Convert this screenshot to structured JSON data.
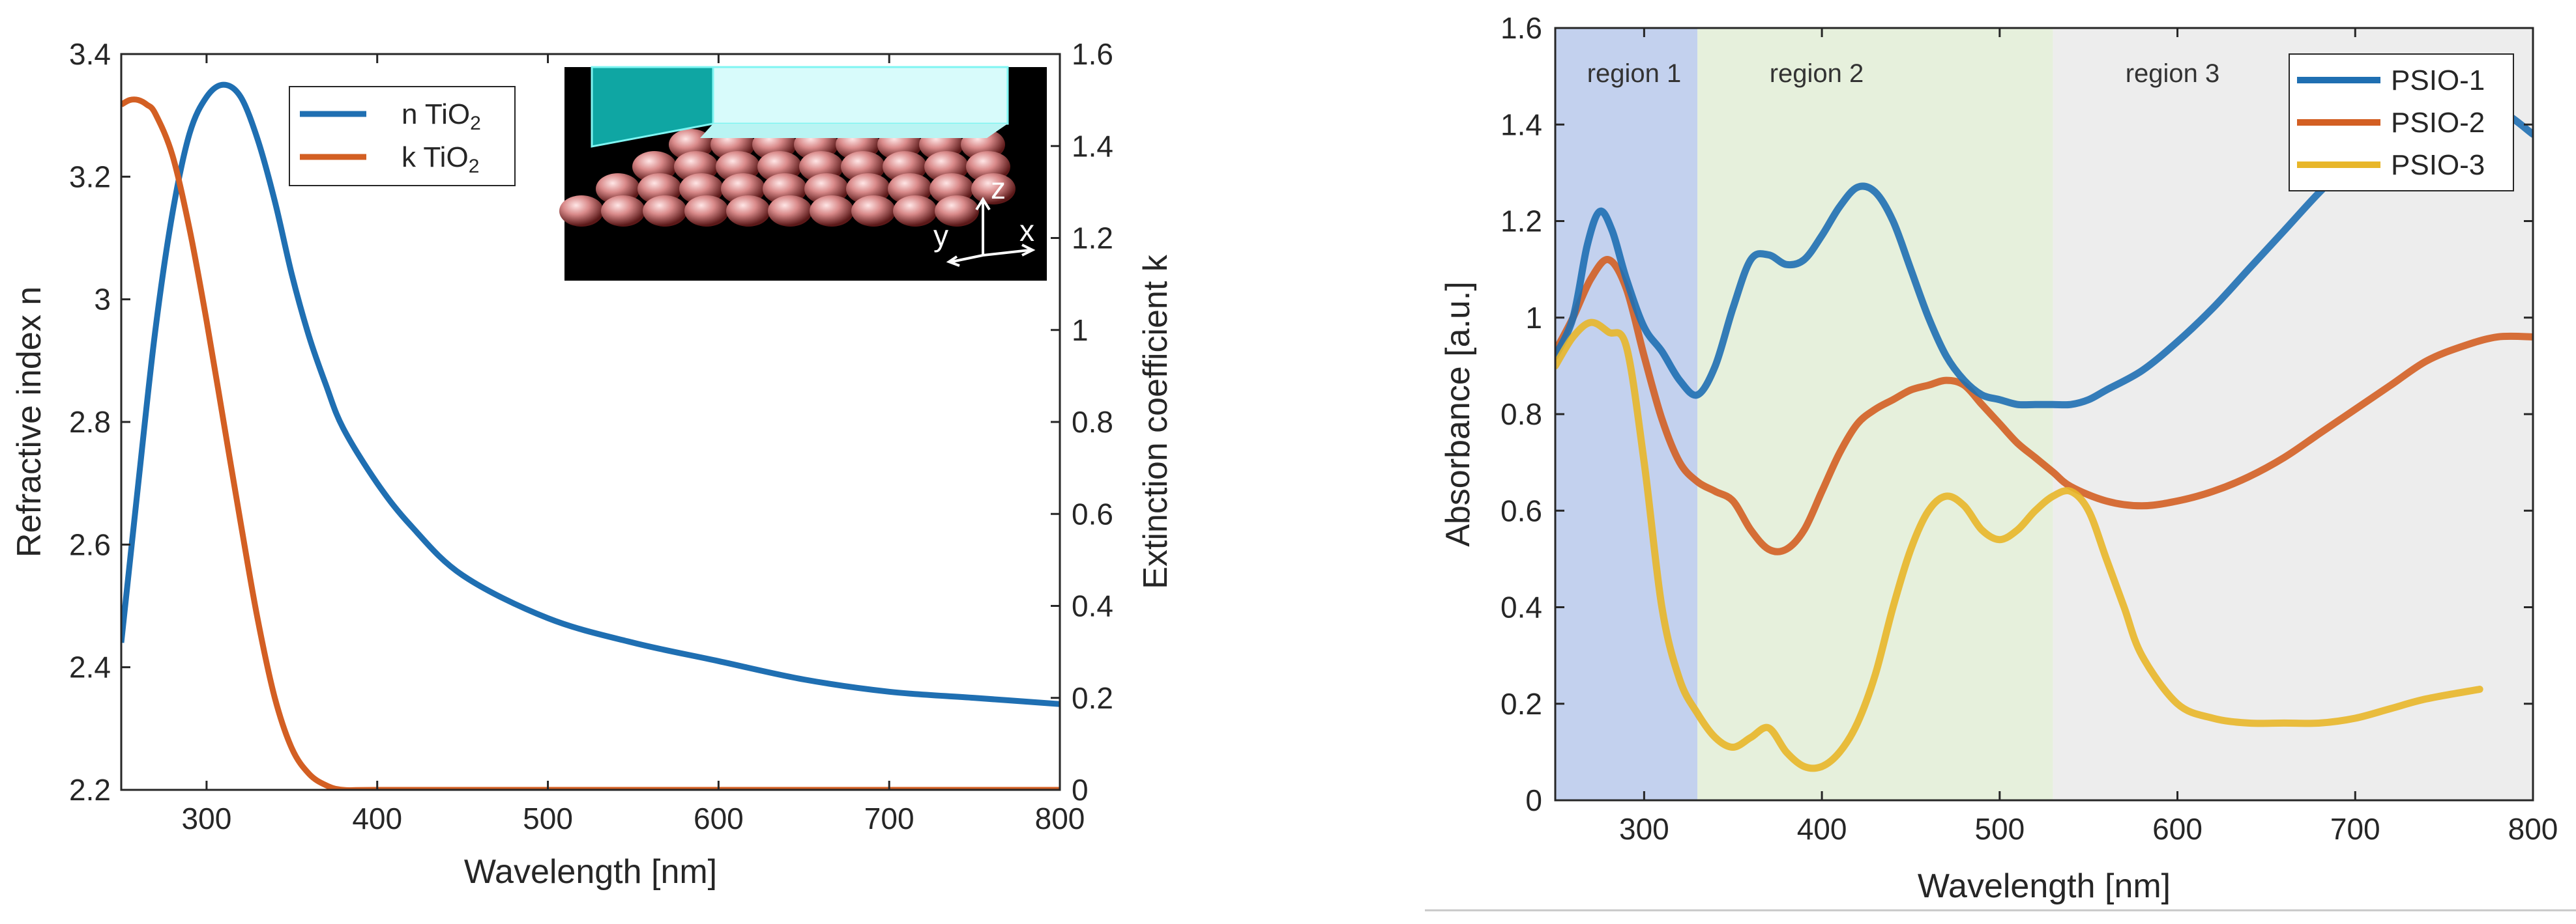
{
  "panels": {
    "left": {
      "xlabel": "Wavelength [nm]",
      "ylabel": "Refractive index n",
      "y2label": "Extinction coefficient k",
      "xticks": [
        "300",
        "400",
        "500",
        "600",
        "700",
        "800"
      ],
      "yticks": [
        "2.2",
        "2.4",
        "2.6",
        "2.8",
        "3",
        "3.2",
        "3.4"
      ],
      "y2ticks": [
        "0",
        "0.2",
        "0.4",
        "0.6",
        "0.8",
        "1",
        "1.2",
        "1.4",
        "1.6"
      ],
      "legend": [
        {
          "prefix": "n TiO",
          "sub": "2",
          "color": "#1f6fb2"
        },
        {
          "prefix": "k TiO",
          "sub": "2",
          "color": "#d35f23"
        }
      ],
      "inset_axes": {
        "z": "z",
        "y": "y",
        "x": "x"
      }
    },
    "right": {
      "xlabel": "Wavelength [nm]",
      "ylabel": "Absorbance [a.u.]",
      "xticks": [
        "300",
        "400",
        "500",
        "600",
        "700",
        "800"
      ],
      "yticks": [
        "0",
        "0.2",
        "0.4",
        "0.6",
        "0.8",
        "1",
        "1.2",
        "1.4",
        "1.6"
      ],
      "regions": [
        {
          "label": "region 1",
          "from": 250,
          "to": 330,
          "color": "#c3d1ee"
        },
        {
          "label": "region 2",
          "from": 330,
          "to": 530,
          "color": "#e6f0dc"
        },
        {
          "label": "region 3",
          "from": 530,
          "to": 800,
          "color": "#ededed"
        }
      ],
      "legend": [
        "PSIO-1",
        "PSIO-2",
        "PSIO-3"
      ]
    }
  },
  "chart_data": [
    {
      "type": "line",
      "xlabel": "Wavelength [nm]",
      "ylabel": "Refractive index n",
      "y2label": "Extinction coefficient k",
      "xlim": [
        250,
        800
      ],
      "ylim": [
        2.2,
        3.4
      ],
      "y2lim": [
        0,
        1.6
      ],
      "grid": false,
      "legend_position": "top-left",
      "series": [
        {
          "name": "n TiO2",
          "axis": "left",
          "color": "#1f6fb2",
          "x": [
            250,
            260,
            270,
            280,
            290,
            300,
            310,
            320,
            330,
            340,
            350,
            360,
            370,
            380,
            400,
            420,
            450,
            500,
            550,
            600,
            650,
            700,
            750,
            800
          ],
          "values": [
            2.44,
            2.7,
            2.95,
            3.14,
            3.27,
            3.33,
            3.35,
            3.33,
            3.26,
            3.16,
            3.04,
            2.94,
            2.86,
            2.79,
            2.7,
            2.63,
            2.55,
            2.48,
            2.44,
            2.41,
            2.38,
            2.36,
            2.35,
            2.34
          ]
        },
        {
          "name": "k TiO2",
          "axis": "right",
          "color": "#d35f23",
          "x": [
            250,
            255,
            260,
            265,
            270,
            280,
            290,
            300,
            310,
            320,
            330,
            340,
            350,
            360,
            370,
            380,
            400,
            500,
            600,
            700,
            800
          ],
          "values": [
            1.49,
            1.5,
            1.5,
            1.49,
            1.47,
            1.38,
            1.22,
            1.02,
            0.8,
            0.58,
            0.37,
            0.2,
            0.09,
            0.035,
            0.01,
            0.0,
            0.0,
            0.0,
            0.0,
            0.0,
            0.0
          ]
        }
      ]
    },
    {
      "type": "line",
      "xlabel": "Wavelength [nm]",
      "ylabel": "Absorbance [a.u.]",
      "xlim": [
        250,
        800
      ],
      "ylim": [
        0,
        1.6
      ],
      "grid": false,
      "legend_position": "top-right",
      "series": [
        {
          "name": "PSIO-1",
          "color": "#1f6fb2",
          "x": [
            250,
            260,
            268,
            275,
            282,
            290,
            300,
            310,
            320,
            330,
            340,
            350,
            360,
            370,
            380,
            390,
            400,
            410,
            420,
            430,
            440,
            450,
            460,
            470,
            480,
            490,
            500,
            510,
            520,
            530,
            540,
            550,
            560,
            580,
            600,
            620,
            640,
            660,
            680,
            700,
            720,
            740,
            760,
            780,
            800
          ],
          "values": [
            0.92,
            1.0,
            1.15,
            1.22,
            1.18,
            1.08,
            0.98,
            0.93,
            0.87,
            0.84,
            0.9,
            1.02,
            1.12,
            1.13,
            1.11,
            1.12,
            1.17,
            1.23,
            1.27,
            1.26,
            1.2,
            1.1,
            1.0,
            0.92,
            0.87,
            0.84,
            0.83,
            0.82,
            0.82,
            0.82,
            0.82,
            0.83,
            0.85,
            0.89,
            0.95,
            1.02,
            1.1,
            1.18,
            1.26,
            1.33,
            1.38,
            1.4,
            1.42,
            1.43,
            1.38
          ]
        },
        {
          "name": "PSIO-2",
          "color": "#d35f23",
          "x": [
            250,
            260,
            270,
            280,
            290,
            300,
            310,
            320,
            330,
            340,
            350,
            360,
            370,
            380,
            390,
            400,
            410,
            420,
            430,
            440,
            450,
            460,
            470,
            480,
            490,
            500,
            510,
            520,
            530,
            540,
            560,
            580,
            600,
            620,
            640,
            660,
            680,
            700,
            720,
            740,
            760,
            780,
            800
          ],
          "values": [
            0.93,
            1.0,
            1.08,
            1.12,
            1.06,
            0.92,
            0.79,
            0.7,
            0.66,
            0.64,
            0.62,
            0.56,
            0.52,
            0.52,
            0.56,
            0.64,
            0.72,
            0.78,
            0.81,
            0.83,
            0.85,
            0.86,
            0.87,
            0.86,
            0.82,
            0.78,
            0.74,
            0.71,
            0.68,
            0.65,
            0.62,
            0.61,
            0.62,
            0.64,
            0.67,
            0.71,
            0.76,
            0.81,
            0.86,
            0.91,
            0.94,
            0.96,
            0.96
          ]
        },
        {
          "name": "PSIO-3",
          "color": "#e8b629",
          "x": [
            250,
            260,
            270,
            280,
            290,
            300,
            310,
            320,
            330,
            340,
            350,
            360,
            370,
            380,
            390,
            400,
            410,
            420,
            430,
            440,
            450,
            460,
            470,
            480,
            490,
            500,
            510,
            520,
            530,
            540,
            550,
            560,
            570,
            580,
            600,
            620,
            640,
            660,
            680,
            700,
            720,
            740,
            770
          ],
          "values": [
            0.9,
            0.96,
            0.99,
            0.97,
            0.94,
            0.7,
            0.4,
            0.25,
            0.18,
            0.13,
            0.11,
            0.13,
            0.15,
            0.1,
            0.07,
            0.07,
            0.1,
            0.16,
            0.26,
            0.4,
            0.52,
            0.6,
            0.63,
            0.61,
            0.56,
            0.54,
            0.56,
            0.6,
            0.63,
            0.64,
            0.6,
            0.5,
            0.4,
            0.3,
            0.2,
            0.17,
            0.16,
            0.16,
            0.16,
            0.17,
            0.19,
            0.21,
            0.23
          ]
        }
      ]
    }
  ]
}
